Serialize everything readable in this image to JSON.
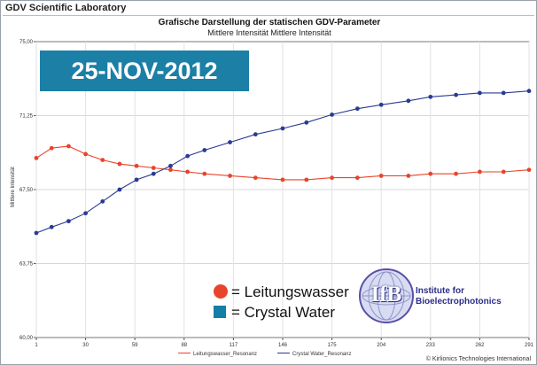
{
  "window": {
    "title": "GDV Scientific Laboratory"
  },
  "banner": {
    "date": "25-NOV-2012"
  },
  "legend_overlay": {
    "series1_label": "= Leitungswasser",
    "series2_label": "= Crystal Water"
  },
  "logo": {
    "text": "IfB",
    "institute_line1": "Institute for",
    "institute_line2": "Bioelectrophotonics"
  },
  "footer": {
    "credit": "© Kirlionics Technologies International"
  },
  "colors": {
    "series1": "#e8442b",
    "series2": "#2b3a92",
    "banner": "#1b7fa6",
    "square_marker": "#147fa6"
  },
  "chart_data": {
    "type": "line",
    "title": "Grafische Darstellung der statischen GDV-Parameter",
    "subtitle": "Mittlere Intensität Mittlere Intensität",
    "xlabel": "",
    "ylabel": "Mittlere Intensität",
    "xlim": [
      1,
      291
    ],
    "ylim": [
      60.0,
      75.0
    ],
    "x_ticks": [
      "1",
      "30",
      "59",
      "88",
      "117",
      "146",
      "175",
      "204",
      "233",
      "262",
      "291"
    ],
    "y_ticks": [
      "60,00",
      "63,75",
      "67,50",
      "71,25",
      "75,00"
    ],
    "legend_position": "bottom",
    "series": [
      {
        "name": "Leitungswasser_Resonanz",
        "marker": "circle",
        "x": [
          1,
          10,
          20,
          30,
          40,
          50,
          60,
          70,
          80,
          90,
          100,
          115,
          130,
          146,
          160,
          175,
          190,
          204,
          220,
          233,
          248,
          262,
          276,
          291
        ],
        "values": [
          69.1,
          69.6,
          69.7,
          69.3,
          69.0,
          68.8,
          68.7,
          68.6,
          68.5,
          68.4,
          68.3,
          68.2,
          68.1,
          68.0,
          68.0,
          68.1,
          68.1,
          68.2,
          68.2,
          68.3,
          68.3,
          68.4,
          68.4,
          68.5
        ]
      },
      {
        "name": "Crystal Water_Resonanz",
        "marker": "square",
        "x": [
          1,
          10,
          20,
          30,
          40,
          50,
          60,
          70,
          80,
          90,
          100,
          115,
          130,
          146,
          160,
          175,
          190,
          204,
          220,
          233,
          248,
          262,
          276,
          291
        ],
        "values": [
          65.3,
          65.6,
          65.9,
          66.3,
          66.9,
          67.5,
          68.0,
          68.3,
          68.7,
          69.2,
          69.5,
          69.9,
          70.3,
          70.6,
          70.9,
          71.3,
          71.6,
          71.8,
          72.0,
          72.2,
          72.3,
          72.4,
          72.4,
          72.5
        ]
      }
    ]
  }
}
